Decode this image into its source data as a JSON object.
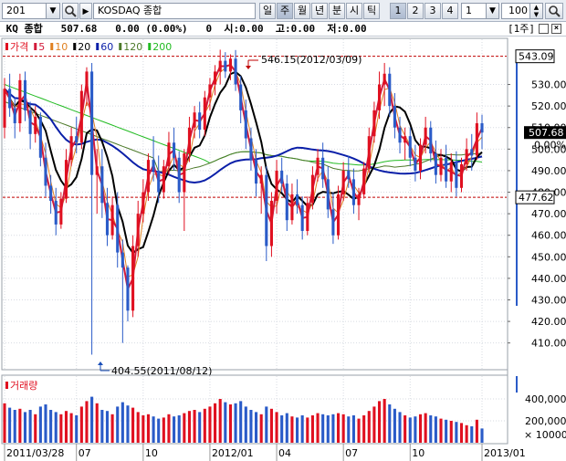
{
  "toolbar": {
    "code": "201",
    "name": "KOSDAQ 종합",
    "periods": [
      {
        "label": "일",
        "active": false
      },
      {
        "label": "주",
        "active": true
      },
      {
        "label": "월",
        "active": false
      },
      {
        "label": "년",
        "active": false
      },
      {
        "label": "분",
        "active": false
      },
      {
        "label": "시",
        "active": false
      },
      {
        "label": "틱",
        "active": false
      }
    ],
    "layouts": [
      {
        "label": "1",
        "active": true
      },
      {
        "label": "2",
        "active": false
      },
      {
        "label": "3",
        "active": false
      },
      {
        "label": "4",
        "active": false
      }
    ],
    "interval_value": "1",
    "count_value": "100"
  },
  "info": {
    "text": " KQ 종합   507.68   0.00 (0.00%)   0  시:0.00  고:0.00  저:0.00",
    "period_badge": "[1주]"
  },
  "colors": {
    "up": "#e01020",
    "down": "#2a5bc8",
    "ma5": "#d21a3a",
    "ma10": "#e08020",
    "ma20": "#000000",
    "ma60": "#0a1fa8",
    "ma120": "#4d7a2a",
    "ma200": "#22bb22",
    "ref_line": "#c00000"
  },
  "legend": [
    {
      "label": "가격",
      "color": "#e01020"
    },
    {
      "label": "5",
      "color": "#d21a3a"
    },
    {
      "label": "10",
      "color": "#e08020"
    },
    {
      "label": "20",
      "color": "#000000"
    },
    {
      "label": "60",
      "color": "#0a1fa8"
    },
    {
      "label": "120",
      "color": "#4d7a2a"
    },
    {
      "label": "200",
      "color": "#22bb22"
    }
  ],
  "volume_legend": "거래량",
  "annotations": {
    "high": "546.15(2012/03/09)",
    "low": "404.55(2011/08/12)"
  },
  "chart_data": {
    "type": "candlestick",
    "price_axis": {
      "ticks": [
        410,
        420,
        430,
        440,
        450,
        460,
        470,
        480,
        490,
        500,
        510,
        520,
        530
      ],
      "range": [
        398,
        551
      ]
    },
    "price_markers": [
      {
        "label": "543.09",
        "value": 543.09,
        "style": "box"
      },
      {
        "label": "507.68",
        "value": 507.68,
        "style": "filled"
      },
      {
        "label": "0.00%",
        "value": 502,
        "style": "plain"
      },
      {
        "label": "477.62",
        "value": 477.62,
        "style": "box"
      }
    ],
    "ref_lines": [
      543.09,
      477.62
    ],
    "volume_axis": {
      "ticks": [
        {
          "label": "400,000",
          "value": 400000
        },
        {
          "label": "200,000",
          "value": 200000
        }
      ],
      "multiplier_label": "× 10000",
      "max": 500000
    },
    "x_labels": [
      {
        "label": "2011/03/28",
        "index": 0
      },
      {
        "label": "07",
        "index": 14
      },
      {
        "label": "10",
        "index": 27
      },
      {
        "label": "2012/01",
        "index": 40
      },
      {
        "label": "04",
        "index": 53
      },
      {
        "label": "07",
        "index": 66
      },
      {
        "label": "10",
        "index": 79
      },
      {
        "label": "2013/01",
        "index": 93
      }
    ],
    "candles": [
      {
        "o": 510,
        "h": 533,
        "l": 505,
        "c": 528,
        "v": 360000
      },
      {
        "o": 528,
        "h": 535,
        "l": 515,
        "c": 519,
        "v": 320000
      },
      {
        "o": 519,
        "h": 524,
        "l": 505,
        "c": 512,
        "v": 300000
      },
      {
        "o": 512,
        "h": 535,
        "l": 508,
        "c": 532,
        "v": 310000
      },
      {
        "o": 532,
        "h": 536,
        "l": 513,
        "c": 518,
        "v": 280000
      },
      {
        "o": 518,
        "h": 522,
        "l": 500,
        "c": 507,
        "v": 300000
      },
      {
        "o": 507,
        "h": 520,
        "l": 503,
        "c": 515,
        "v": 260000
      },
      {
        "o": 515,
        "h": 517,
        "l": 492,
        "c": 496,
        "v": 330000
      },
      {
        "o": 496,
        "h": 503,
        "l": 478,
        "c": 483,
        "v": 350000
      },
      {
        "o": 483,
        "h": 488,
        "l": 470,
        "c": 476,
        "v": 300000
      },
      {
        "o": 476,
        "h": 482,
        "l": 460,
        "c": 465,
        "v": 280000
      },
      {
        "o": 465,
        "h": 480,
        "l": 463,
        "c": 477,
        "v": 260000
      },
      {
        "o": 477,
        "h": 500,
        "l": 475,
        "c": 495,
        "v": 290000
      },
      {
        "o": 495,
        "h": 510,
        "l": 492,
        "c": 506,
        "v": 270000
      },
      {
        "o": 506,
        "h": 515,
        "l": 498,
        "c": 503,
        "v": 250000
      },
      {
        "o": 503,
        "h": 530,
        "l": 500,
        "c": 527,
        "v": 330000
      },
      {
        "o": 527,
        "h": 538,
        "l": 520,
        "c": 536,
        "v": 380000
      },
      {
        "o": 536,
        "h": 540,
        "l": 404.55,
        "c": 488,
        "v": 420000
      },
      {
        "o": 488,
        "h": 500,
        "l": 470,
        "c": 492,
        "v": 360000
      },
      {
        "o": 492,
        "h": 500,
        "l": 468,
        "c": 475,
        "v": 300000
      },
      {
        "o": 475,
        "h": 482,
        "l": 455,
        "c": 460,
        "v": 290000
      },
      {
        "o": 460,
        "h": 478,
        "l": 458,
        "c": 474,
        "v": 260000
      },
      {
        "o": 474,
        "h": 480,
        "l": 445,
        "c": 452,
        "v": 330000
      },
      {
        "o": 452,
        "h": 458,
        "l": 410,
        "c": 445,
        "v": 370000
      },
      {
        "o": 445,
        "h": 446,
        "l": 420,
        "c": 425,
        "v": 340000
      },
      {
        "o": 425,
        "h": 460,
        "l": 422,
        "c": 455,
        "v": 320000
      },
      {
        "o": 455,
        "h": 476,
        "l": 450,
        "c": 470,
        "v": 280000
      },
      {
        "o": 470,
        "h": 486,
        "l": 466,
        "c": 480,
        "v": 250000
      },
      {
        "o": 480,
        "h": 498,
        "l": 476,
        "c": 495,
        "v": 260000
      },
      {
        "o": 495,
        "h": 506,
        "l": 485,
        "c": 490,
        "v": 240000
      },
      {
        "o": 490,
        "h": 497,
        "l": 475,
        "c": 480,
        "v": 220000
      },
      {
        "o": 480,
        "h": 495,
        "l": 477,
        "c": 492,
        "v": 230000
      },
      {
        "o": 492,
        "h": 508,
        "l": 488,
        "c": 503,
        "v": 260000
      },
      {
        "o": 503,
        "h": 510,
        "l": 490,
        "c": 496,
        "v": 240000
      },
      {
        "o": 496,
        "h": 499,
        "l": 475,
        "c": 480,
        "v": 250000
      },
      {
        "o": 480,
        "h": 500,
        "l": 462,
        "c": 498,
        "v": 270000
      },
      {
        "o": 498,
        "h": 515,
        "l": 494,
        "c": 510,
        "v": 290000
      },
      {
        "o": 510,
        "h": 520,
        "l": 505,
        "c": 517,
        "v": 300000
      },
      {
        "o": 517,
        "h": 522,
        "l": 505,
        "c": 509,
        "v": 280000
      },
      {
        "o": 509,
        "h": 527,
        "l": 506,
        "c": 524,
        "v": 310000
      },
      {
        "o": 524,
        "h": 533,
        "l": 518,
        "c": 530,
        "v": 330000
      },
      {
        "o": 530,
        "h": 539,
        "l": 525,
        "c": 536,
        "v": 360000
      },
      {
        "o": 536,
        "h": 546.15,
        "l": 530,
        "c": 541,
        "v": 400000
      },
      {
        "o": 541,
        "h": 545,
        "l": 533,
        "c": 536,
        "v": 370000
      },
      {
        "o": 536,
        "h": 544,
        "l": 532,
        "c": 542,
        "v": 350000
      },
      {
        "o": 542,
        "h": 546,
        "l": 527,
        "c": 530,
        "v": 360000
      },
      {
        "o": 530,
        "h": 534,
        "l": 512,
        "c": 518,
        "v": 380000
      },
      {
        "o": 518,
        "h": 523,
        "l": 500,
        "c": 505,
        "v": 330000
      },
      {
        "o": 505,
        "h": 510,
        "l": 490,
        "c": 495,
        "v": 300000
      },
      {
        "o": 495,
        "h": 500,
        "l": 478,
        "c": 484,
        "v": 280000
      },
      {
        "o": 484,
        "h": 492,
        "l": 470,
        "c": 488,
        "v": 260000
      },
      {
        "o": 488,
        "h": 492,
        "l": 448,
        "c": 455,
        "v": 330000
      },
      {
        "o": 455,
        "h": 480,
        "l": 450,
        "c": 476,
        "v": 310000
      },
      {
        "o": 476,
        "h": 495,
        "l": 470,
        "c": 490,
        "v": 280000
      },
      {
        "o": 490,
        "h": 496,
        "l": 480,
        "c": 484,
        "v": 250000
      },
      {
        "o": 484,
        "h": 488,
        "l": 462,
        "c": 467,
        "v": 270000
      },
      {
        "o": 467,
        "h": 484,
        "l": 465,
        "c": 479,
        "v": 240000
      },
      {
        "o": 479,
        "h": 486,
        "l": 470,
        "c": 474,
        "v": 230000
      },
      {
        "o": 474,
        "h": 478,
        "l": 458,
        "c": 462,
        "v": 250000
      },
      {
        "o": 462,
        "h": 478,
        "l": 460,
        "c": 475,
        "v": 230000
      },
      {
        "o": 475,
        "h": 492,
        "l": 472,
        "c": 488,
        "v": 250000
      },
      {
        "o": 488,
        "h": 500,
        "l": 485,
        "c": 496,
        "v": 270000
      },
      {
        "o": 496,
        "h": 503,
        "l": 482,
        "c": 486,
        "v": 260000
      },
      {
        "o": 486,
        "h": 492,
        "l": 468,
        "c": 472,
        "v": 250000
      },
      {
        "o": 472,
        "h": 480,
        "l": 456,
        "c": 460,
        "v": 260000
      },
      {
        "o": 460,
        "h": 483,
        "l": 458,
        "c": 479,
        "v": 270000
      },
      {
        "o": 479,
        "h": 494,
        "l": 476,
        "c": 490,
        "v": 260000
      },
      {
        "o": 490,
        "h": 497,
        "l": 482,
        "c": 486,
        "v": 240000
      },
      {
        "o": 486,
        "h": 491,
        "l": 470,
        "c": 474,
        "v": 250000
      },
      {
        "o": 474,
        "h": 482,
        "l": 467,
        "c": 479,
        "v": 220000
      },
      {
        "o": 479,
        "h": 494,
        "l": 477,
        "c": 491,
        "v": 250000
      },
      {
        "o": 491,
        "h": 510,
        "l": 489,
        "c": 506,
        "v": 290000
      },
      {
        "o": 506,
        "h": 522,
        "l": 503,
        "c": 518,
        "v": 330000
      },
      {
        "o": 518,
        "h": 536,
        "l": 514,
        "c": 530,
        "v": 380000
      },
      {
        "o": 530,
        "h": 540,
        "l": 520,
        "c": 535,
        "v": 400000
      },
      {
        "o": 535,
        "h": 538,
        "l": 515,
        "c": 520,
        "v": 350000
      },
      {
        "o": 520,
        "h": 526,
        "l": 505,
        "c": 510,
        "v": 310000
      },
      {
        "o": 510,
        "h": 515,
        "l": 498,
        "c": 503,
        "v": 280000
      },
      {
        "o": 503,
        "h": 510,
        "l": 495,
        "c": 506,
        "v": 250000
      },
      {
        "o": 506,
        "h": 510,
        "l": 492,
        "c": 496,
        "v": 230000
      },
      {
        "o": 496,
        "h": 502,
        "l": 485,
        "c": 490,
        "v": 240000
      },
      {
        "o": 490,
        "h": 505,
        "l": 486,
        "c": 502,
        "v": 260000
      },
      {
        "o": 502,
        "h": 515,
        "l": 498,
        "c": 510,
        "v": 270000
      },
      {
        "o": 510,
        "h": 513,
        "l": 494,
        "c": 498,
        "v": 250000
      },
      {
        "o": 498,
        "h": 504,
        "l": 484,
        "c": 488,
        "v": 240000
      },
      {
        "o": 488,
        "h": 500,
        "l": 485,
        "c": 496,
        "v": 220000
      },
      {
        "o": 496,
        "h": 502,
        "l": 482,
        "c": 485,
        "v": 210000
      },
      {
        "o": 485,
        "h": 498,
        "l": 480,
        "c": 494,
        "v": 200000
      },
      {
        "o": 494,
        "h": 499,
        "l": 478,
        "c": 482,
        "v": 190000
      },
      {
        "o": 482,
        "h": 496,
        "l": 480,
        "c": 493,
        "v": 180000
      },
      {
        "o": 493,
        "h": 505,
        "l": 490,
        "c": 500,
        "v": 160000
      },
      {
        "o": 500,
        "h": 507,
        "l": 490,
        "c": 497,
        "v": 150000
      },
      {
        "o": 497,
        "h": 517,
        "l": 495,
        "c": 512,
        "v": 210000
      },
      {
        "o": 512,
        "h": 516,
        "l": 500,
        "c": 507.68,
        "v": 130000
      }
    ]
  }
}
